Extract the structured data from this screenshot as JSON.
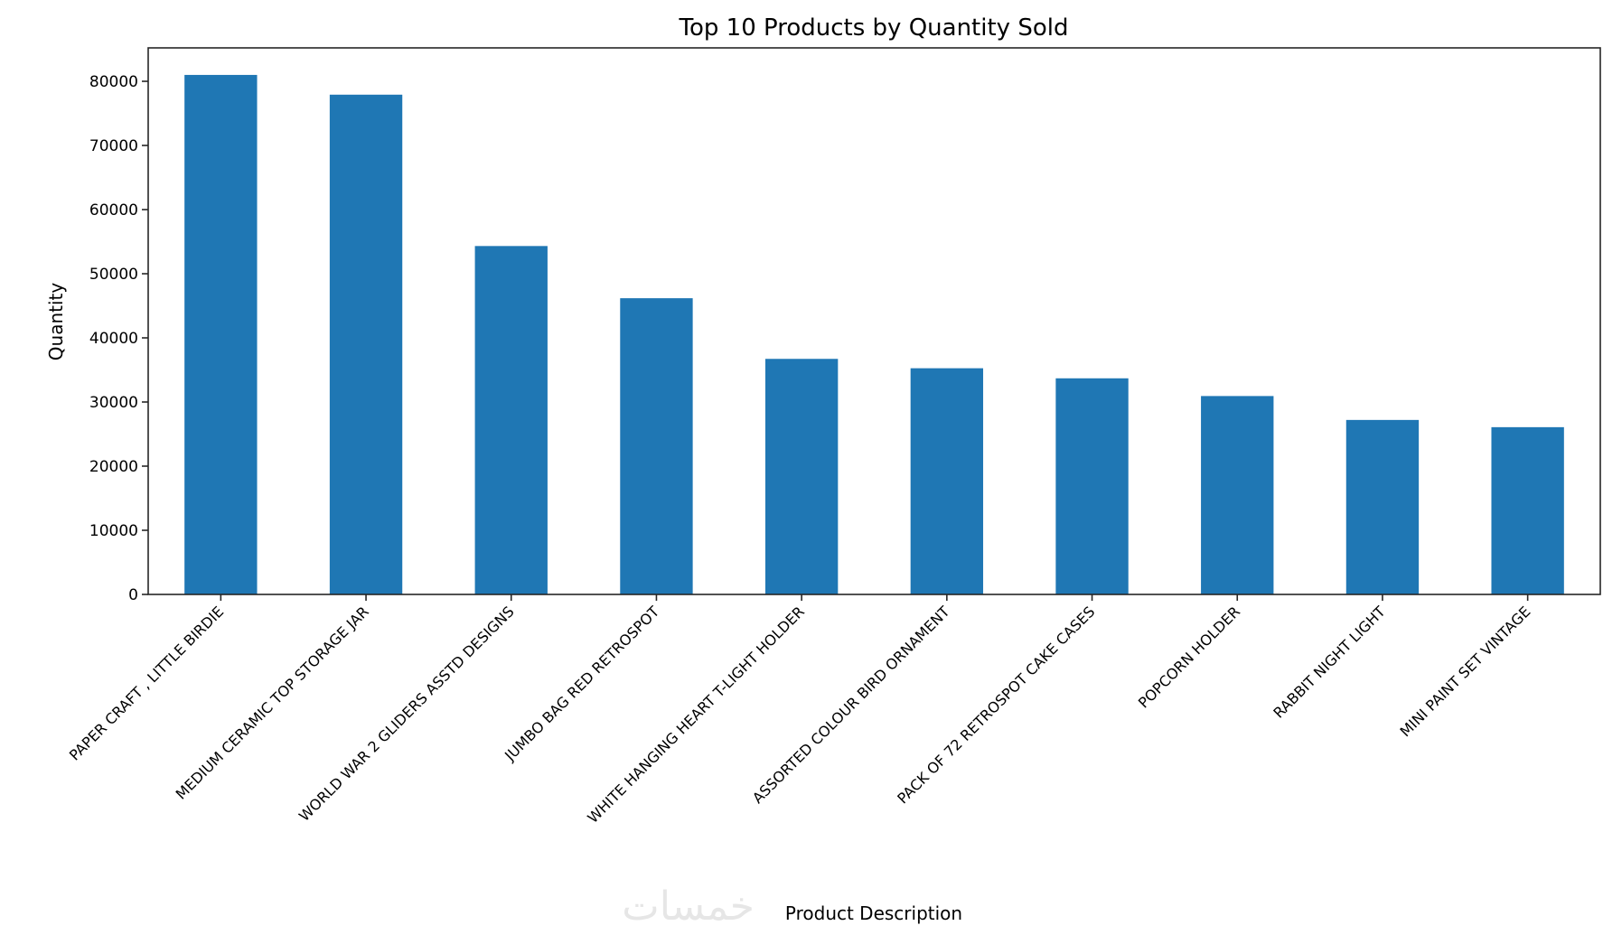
{
  "chart_data": {
    "type": "bar",
    "title": "Top 10 Products by Quantity Sold",
    "xlabel": "Product Description",
    "ylabel": "Quantity",
    "ylim": [
      0,
      85000
    ],
    "yticks": [
      0,
      10000,
      20000,
      30000,
      40000,
      50000,
      60000,
      70000,
      80000
    ],
    "grid": false,
    "bar_color": "#1f77b4",
    "categories": [
      "PAPER CRAFT , LITTLE BIRDIE",
      "MEDIUM CERAMIC TOP STORAGE JAR",
      "WORLD WAR 2 GLIDERS ASSTD DESIGNS",
      "JUMBO BAG RED RETROSPOT",
      "WHITE HANGING HEART T-LIGHT HOLDER",
      "ASSORTED COLOUR BIRD ORNAMENT",
      "PACK OF 72 RETROSPOT CAKE CASES",
      "POPCORN HOLDER",
      "RABBIT NIGHT LIGHT",
      "MINI PAINT SET VINTAGE"
    ],
    "values": [
      80995,
      77916,
      54319,
      46181,
      36725,
      35263,
      33693,
      30931,
      27202,
      26076
    ]
  },
  "watermark": "خمسات"
}
